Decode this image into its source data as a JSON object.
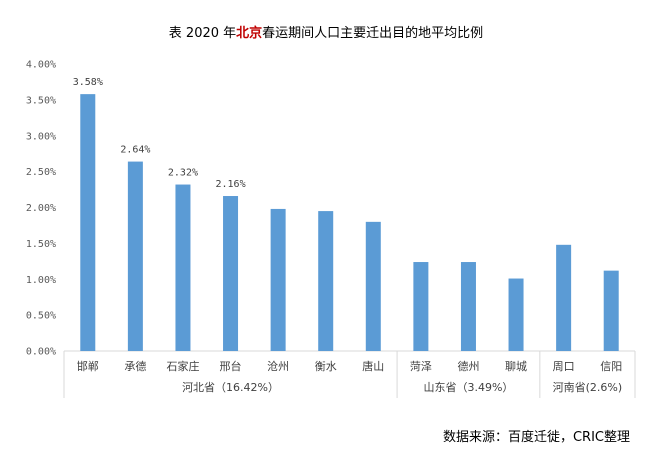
{
  "title": {
    "prefix": "表 2020 年",
    "highlight": "北京",
    "suffix": "春运期间人口主要迁出目的地平均比例"
  },
  "source": "数据来源：百度迁徙，CRIC整理",
  "colors": {
    "bar": "#5b9bd5",
    "axis": "#d9d9d9",
    "title_highlight": "#c00000"
  },
  "chart_data": {
    "type": "bar",
    "title": "表 2020 年北京春运期间人口主要迁出目的地平均比例",
    "xlabel": "",
    "ylabel": "",
    "ylim": [
      0,
      4
    ],
    "yticks": [
      "0.00%",
      "0.50%",
      "1.00%",
      "1.50%",
      "2.00%",
      "2.50%",
      "3.00%",
      "3.50%",
      "4.00%"
    ],
    "grid": false,
    "legend": "none",
    "categories": [
      "邯郸",
      "承德",
      "石家庄",
      "邢台",
      "沧州",
      "衡水",
      "唐山",
      "菏泽",
      "德州",
      "聊城",
      "周口",
      "信阳"
    ],
    "values": [
      3.58,
      2.64,
      2.32,
      2.16,
      1.98,
      1.95,
      1.8,
      1.24,
      1.24,
      1.01,
      1.48,
      1.12
    ],
    "data_labels": [
      "3.58%",
      "2.64%",
      "2.32%",
      "2.16%",
      null,
      null,
      null,
      null,
      null,
      null,
      null,
      null
    ],
    "groups": [
      {
        "label": "河北省（16.42%）",
        "count": 7
      },
      {
        "label": "山东省（3.49%）",
        "count": 3
      },
      {
        "label": "河南省(2.6%)",
        "count": 2
      }
    ]
  }
}
